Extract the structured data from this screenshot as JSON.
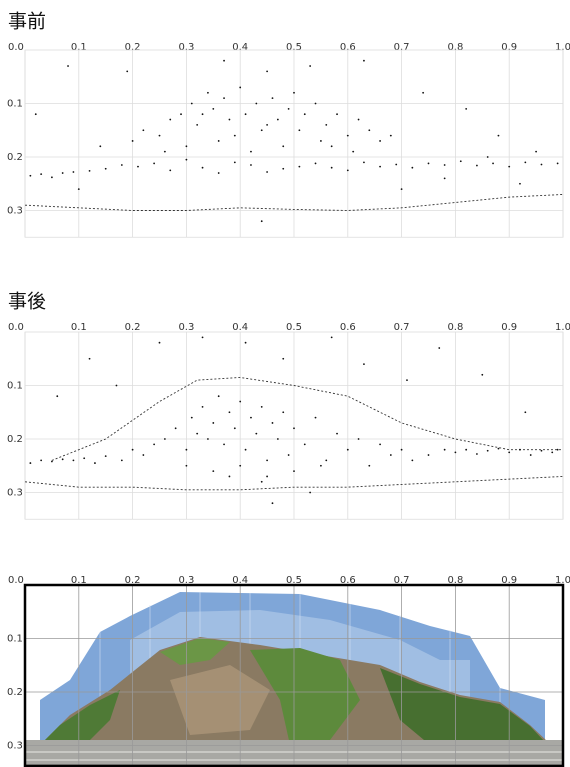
{
  "chart_data": [
    {
      "type": "scatter",
      "title": "事前",
      "xlim": [
        0,
        1
      ],
      "ylim": [
        0,
        0.35
      ],
      "xticks": [
        {
          "value": 0,
          "label": "0.0"
        },
        0.1,
        0.2,
        0.3,
        0.4,
        0.5,
        0.6,
        0.7,
        0.8,
        0.9,
        {
          "value": 1,
          "label": "1.0"
        }
      ],
      "yticks": [
        0.1,
        0.2,
        0.3
      ],
      "grid": true,
      "color": "#111",
      "x": [
        0.01,
        0.03,
        0.05,
        0.07,
        0.09,
        0.12,
        0.15,
        0.18,
        0.21,
        0.24,
        0.27,
        0.3,
        0.33,
        0.36,
        0.39,
        0.42,
        0.45,
        0.48,
        0.51,
        0.54,
        0.57,
        0.6,
        0.63,
        0.66,
        0.69,
        0.72,
        0.75,
        0.78,
        0.81,
        0.84,
        0.87,
        0.9,
        0.93,
        0.96,
        0.99,
        0.2,
        0.22,
        0.25,
        0.27,
        0.29,
        0.31,
        0.32,
        0.34,
        0.35,
        0.37,
        0.38,
        0.4,
        0.41,
        0.43,
        0.44,
        0.46,
        0.47,
        0.49,
        0.5,
        0.52,
        0.54,
        0.56,
        0.58,
        0.6,
        0.62,
        0.64,
        0.66,
        0.68,
        0.3,
        0.36,
        0.42,
        0.48,
        0.55,
        0.61,
        0.26,
        0.33,
        0.39,
        0.45,
        0.51,
        0.57,
        0.02,
        0.08,
        0.14,
        0.19,
        0.37,
        0.45,
        0.53,
        0.63,
        0.74,
        0.82,
        0.88,
        0.95,
        0.1,
        0.7,
        0.78,
        0.86,
        0.92,
        0.44
      ],
      "y": [
        0.235,
        0.232,
        0.238,
        0.23,
        0.228,
        0.226,
        0.222,
        0.215,
        0.218,
        0.212,
        0.225,
        0.205,
        0.22,
        0.23,
        0.21,
        0.215,
        0.228,
        0.222,
        0.218,
        0.212,
        0.22,
        0.225,
        0.21,
        0.218,
        0.214,
        0.22,
        0.212,
        0.215,
        0.208,
        0.216,
        0.212,
        0.218,
        0.21,
        0.214,
        0.212,
        0.17,
        0.15,
        0.16,
        0.13,
        0.12,
        0.1,
        0.14,
        0.08,
        0.11,
        0.09,
        0.13,
        0.07,
        0.12,
        0.1,
        0.15,
        0.09,
        0.13,
        0.11,
        0.08,
        0.12,
        0.1,
        0.14,
        0.12,
        0.16,
        0.13,
        0.15,
        0.17,
        0.16,
        0.18,
        0.17,
        0.19,
        0.18,
        0.17,
        0.19,
        0.19,
        0.12,
        0.16,
        0.14,
        0.15,
        0.18,
        0.12,
        0.03,
        0.18,
        0.04,
        0.02,
        0.04,
        0.03,
        0.02,
        0.08,
        0.11,
        0.16,
        0.19,
        0.26,
        0.26,
        0.24,
        0.2,
        0.25,
        0.32
      ],
      "outlines": [
        {
          "x": [
            0,
            0.1,
            0.2,
            0.3,
            0.4,
            0.5,
            0.6,
            0.7,
            0.8,
            0.9,
            1
          ],
          "y": [
            0.29,
            0.295,
            0.3,
            0.3,
            0.295,
            0.298,
            0.3,
            0.295,
            0.285,
            0.275,
            0.27
          ]
        }
      ]
    },
    {
      "type": "scatter",
      "title": "事後",
      "xlim": [
        0,
        1
      ],
      "ylim": [
        0,
        0.35
      ],
      "xticks": [
        {
          "value": 0,
          "label": "0.0"
        },
        0.1,
        0.2,
        0.3,
        0.4,
        0.5,
        0.6,
        0.7,
        0.8,
        0.9,
        {
          "value": 1,
          "label": "1.0"
        }
      ],
      "yticks": [
        0.1,
        0.2,
        0.3
      ],
      "grid": true,
      "color": "#111",
      "x": [
        0.01,
        0.03,
        0.05,
        0.07,
        0.09,
        0.11,
        0.13,
        0.15,
        0.8,
        0.82,
        0.84,
        0.86,
        0.88,
        0.9,
        0.92,
        0.94,
        0.96,
        0.98,
        0.99,
        0.18,
        0.2,
        0.22,
        0.24,
        0.26,
        0.28,
        0.3,
        0.31,
        0.32,
        0.33,
        0.34,
        0.35,
        0.36,
        0.37,
        0.38,
        0.39,
        0.4,
        0.41,
        0.42,
        0.43,
        0.44,
        0.45,
        0.46,
        0.47,
        0.48,
        0.49,
        0.5,
        0.52,
        0.54,
        0.56,
        0.58,
        0.6,
        0.62,
        0.64,
        0.66,
        0.68,
        0.7,
        0.72,
        0.75,
        0.78,
        0.35,
        0.4,
        0.45,
        0.5,
        0.55,
        0.3,
        0.38,
        0.44,
        0.06,
        0.12,
        0.17,
        0.25,
        0.33,
        0.41,
        0.48,
        0.57,
        0.63,
        0.71,
        0.77,
        0.85,
        0.93,
        0.46,
        0.53
      ],
      "y": [
        0.245,
        0.24,
        0.242,
        0.238,
        0.24,
        0.236,
        0.245,
        0.232,
        0.225,
        0.22,
        0.228,
        0.222,
        0.218,
        0.225,
        0.22,
        0.23,
        0.222,
        0.225,
        0.22,
        0.24,
        0.22,
        0.23,
        0.21,
        0.2,
        0.18,
        0.22,
        0.16,
        0.19,
        0.14,
        0.2,
        0.17,
        0.12,
        0.21,
        0.15,
        0.18,
        0.13,
        0.22,
        0.16,
        0.19,
        0.14,
        0.24,
        0.17,
        0.2,
        0.15,
        0.23,
        0.18,
        0.21,
        0.16,
        0.24,
        0.19,
        0.22,
        0.2,
        0.25,
        0.21,
        0.23,
        0.22,
        0.24,
        0.23,
        0.22,
        0.26,
        0.25,
        0.27,
        0.26,
        0.25,
        0.25,
        0.27,
        0.28,
        0.12,
        0.05,
        0.1,
        0.02,
        0.01,
        0.02,
        0.05,
        0.01,
        0.06,
        0.09,
        0.03,
        0.08,
        0.15,
        0.32,
        0.3
      ],
      "outlines": [
        {
          "x": [
            0,
            0.1,
            0.2,
            0.3,
            0.4,
            0.5,
            0.6,
            0.7,
            0.8,
            0.9,
            1
          ],
          "y": [
            0.28,
            0.29,
            0.29,
            0.295,
            0.295,
            0.29,
            0.29,
            0.285,
            0.28,
            0.275,
            0.27
          ]
        },
        {
          "x": [
            0.05,
            0.15,
            0.25,
            0.32,
            0.4,
            0.5,
            0.6,
            0.7,
            0.8,
            0.9,
            1
          ],
          "y": [
            0.24,
            0.2,
            0.13,
            0.09,
            0.085,
            0.1,
            0.12,
            0.17,
            0.2,
            0.22,
            0.22
          ]
        }
      ]
    },
    {
      "type": "image",
      "xlim": [
        0,
        1
      ],
      "ylim": [
        0,
        0.34
      ],
      "xticks": [
        {
          "value": 0,
          "label": "0.0"
        },
        0.1,
        0.2,
        0.3,
        0.4,
        0.5,
        0.6,
        0.7,
        0.8,
        0.9,
        {
          "value": 1,
          "label": "1.0"
        }
      ],
      "yticks": [
        0.1,
        0.2,
        0.3
      ],
      "grid": true
    }
  ]
}
